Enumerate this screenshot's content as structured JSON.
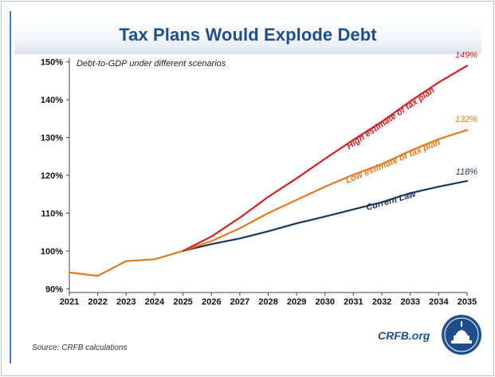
{
  "header": {
    "title": "Tax Plans Would Explode Debt"
  },
  "footer": {
    "source": "Source: CRFB calculations",
    "brand": "CRFB.org"
  },
  "logo": {
    "name": "crfb-capitol-logo"
  },
  "colors": {
    "title": "#1f4e8c",
    "accent_bar": "#3d7fd6"
  },
  "chart_data": {
    "type": "line",
    "title": "Debt-to-GDP under different scenarios",
    "xlabel": "",
    "ylabel": "",
    "categories": [
      "2021",
      "2022",
      "2023",
      "2024",
      "2025",
      "2026",
      "2027",
      "2028",
      "2029",
      "2030",
      "2031",
      "2032",
      "2033",
      "2034",
      "2035"
    ],
    "ylim": [
      89,
      151
    ],
    "yticks": [
      90,
      100,
      110,
      120,
      130,
      140,
      150
    ],
    "ytick_labels": [
      "90%",
      "100%",
      "110%",
      "120%",
      "130%",
      "140%",
      "150%"
    ],
    "grid": false,
    "series": [
      {
        "name": "Current Law",
        "color": "#17375e",
        "start_index": 4,
        "values": [
          null,
          null,
          null,
          null,
          100,
          101.8,
          103.3,
          105.2,
          107.3,
          109.1,
          111.0,
          112.9,
          115.3,
          117.0,
          118.5
        ],
        "label": "Current Law",
        "end_label": "118%"
      },
      {
        "name": "Low estimate of tax plan",
        "color": "#e07b20",
        "start_index": 0,
        "values": [
          94.3,
          93.4,
          97.3,
          97.8,
          100,
          102.6,
          106.0,
          110.0,
          113.5,
          117.0,
          120.2,
          123.0,
          126.5,
          129.6,
          132.0
        ],
        "label": "Low estimate of tax plan",
        "end_label": "132%"
      },
      {
        "name": "High estimate of tax plan",
        "color": "#d42020",
        "start_index": 4,
        "values": [
          null,
          null,
          null,
          null,
          100,
          103.8,
          108.8,
          114.3,
          119.2,
          124.4,
          129.4,
          134.2,
          139.6,
          144.6,
          149.0
        ],
        "label": "High estimate of tax plan",
        "end_label": "149%"
      }
    ]
  }
}
